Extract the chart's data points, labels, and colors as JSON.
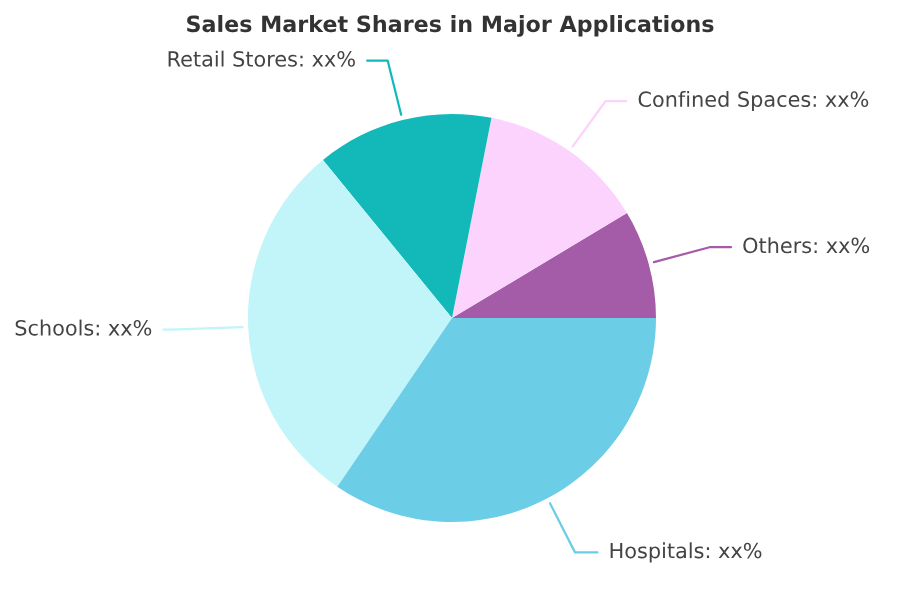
{
  "chart_data": {
    "type": "pie",
    "title": "Sales Market Shares in Major Applications",
    "categories": [
      "Others",
      "Confined Spaces",
      "Retail Stores",
      "Schools",
      "Hospitals"
    ],
    "values": [
      8.6,
      13.3,
      14.0,
      29.6,
      34.5
    ],
    "value_labels": [
      "xx%",
      "xx%",
      "xx%",
      "xx%",
      "xx%"
    ],
    "colors": [
      "#a55ca8",
      "#fcd3fc",
      "#13b9b9",
      "#c1f5f9",
      "#6ccde6"
    ],
    "legend": false
  }
}
